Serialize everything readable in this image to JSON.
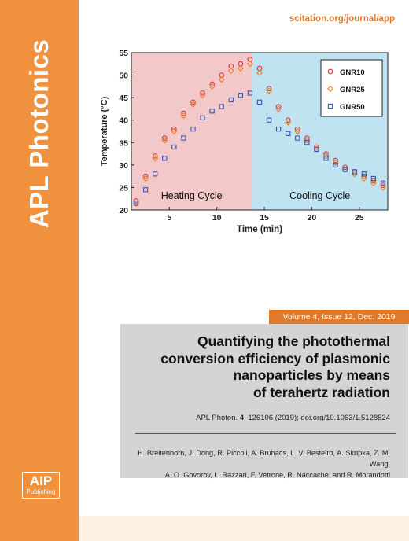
{
  "sidebar": {
    "journal_name": "APL Photonics",
    "logo_line1": "AIP",
    "logo_line2": "Publishing"
  },
  "header": {
    "url": "scitation.org/journal/app"
  },
  "issue": {
    "label": "Volume 4, Issue 12, Dec. 2019"
  },
  "article": {
    "title_lines": [
      "Quantifying the photothermal",
      "conversion efficiency of plasmonic",
      "nanoparticles by means",
      "of terahertz radiation"
    ],
    "citation_prefix": "APL Photon. ",
    "citation_volume": "4",
    "citation_rest": ", 126106 (2019); doi.org/10.1063/1.5128524",
    "authors_lines": [
      "H. Breitenborn, J. Dong, R. Piccoli, A. Bruhacs, L. V. Besteiro, A. Skripka, Z. M. Wang,",
      "A. O. Govorov, L. Razzari, F. Vetrone, R. Naccache, and R. Morandotti"
    ]
  },
  "colors": {
    "sidebar": "#f0913e",
    "accent": "#e07a2a",
    "heating_bg": "#f3c8c8",
    "cooling_bg": "#bfe3f0"
  },
  "chart_data": {
    "type": "scatter",
    "xlabel": "Time (min)",
    "ylabel": "Temperature (°C)",
    "xlim": [
      1,
      28
    ],
    "ylim": [
      20,
      55
    ],
    "xticks": [
      5,
      10,
      15,
      20,
      25
    ],
    "yticks": [
      20,
      25,
      30,
      35,
      40,
      45,
      50,
      55
    ],
    "regions": [
      {
        "label": "Heating Cycle",
        "x": [
          1,
          13.7
        ],
        "color": "#f3c8c8"
      },
      {
        "label": "Cooling Cycle",
        "x": [
          13.7,
          28
        ],
        "color": "#bfe3f0"
      }
    ],
    "series": [
      {
        "name": "GNR10",
        "marker": "circle",
        "color": "#d8343c",
        "x": [
          1.5,
          2.5,
          3.5,
          4.5,
          5.5,
          6.5,
          7.5,
          8.5,
          9.5,
          10.5,
          11.5,
          12.5,
          13.5,
          14.5,
          15.5,
          16.5,
          17.5,
          18.5,
          19.5,
          20.5,
          21.5,
          22.5,
          23.5,
          24.5,
          25.5,
          26.5,
          27.5
        ],
        "y": [
          22,
          27.5,
          32,
          36,
          38,
          41.5,
          44,
          46,
          48,
          50,
          52,
          52.5,
          53.5,
          51.5,
          47,
          43,
          40,
          38,
          36,
          34,
          32.5,
          31,
          29.5,
          28.5,
          27.5,
          26.5,
          25.5
        ]
      },
      {
        "name": "GNR25",
        "marker": "diamond",
        "color": "#e8842c",
        "x": [
          1.5,
          2.5,
          3.5,
          4.5,
          5.5,
          6.5,
          7.5,
          8.5,
          9.5,
          10.5,
          11.5,
          12.5,
          13.5,
          14.5,
          15.5,
          16.5,
          17.5,
          18.5,
          19.5,
          20.5,
          21.5,
          22.5,
          23.5,
          24.5,
          25.5,
          26.5,
          27.5
        ],
        "y": [
          21.5,
          27,
          31.5,
          35.5,
          37.5,
          41,
          43.5,
          45.5,
          47.5,
          49,
          51,
          51.5,
          52.5,
          50.5,
          46.5,
          42.5,
          39.5,
          37.5,
          35.5,
          33.5,
          32,
          30.5,
          29,
          28,
          27,
          26,
          25
        ]
      },
      {
        "name": "GNR50",
        "marker": "square",
        "color": "#3a55b4",
        "x": [
          1.5,
          2.5,
          3.5,
          4.5,
          5.5,
          6.5,
          7.5,
          8.5,
          9.5,
          10.5,
          11.5,
          12.5,
          13.5,
          14.5,
          15.5,
          16.5,
          17.5,
          18.5,
          19.5,
          20.5,
          21.5,
          22.5,
          23.5,
          24.5,
          25.5,
          26.5,
          27.5
        ],
        "y": [
          21.5,
          24.5,
          28,
          31.5,
          34,
          36,
          38,
          40.5,
          42,
          43,
          44.5,
          45.5,
          46,
          44,
          40,
          38,
          37,
          36,
          35,
          33.5,
          31.5,
          30,
          29,
          28.5,
          28,
          27,
          26
        ]
      }
    ]
  }
}
